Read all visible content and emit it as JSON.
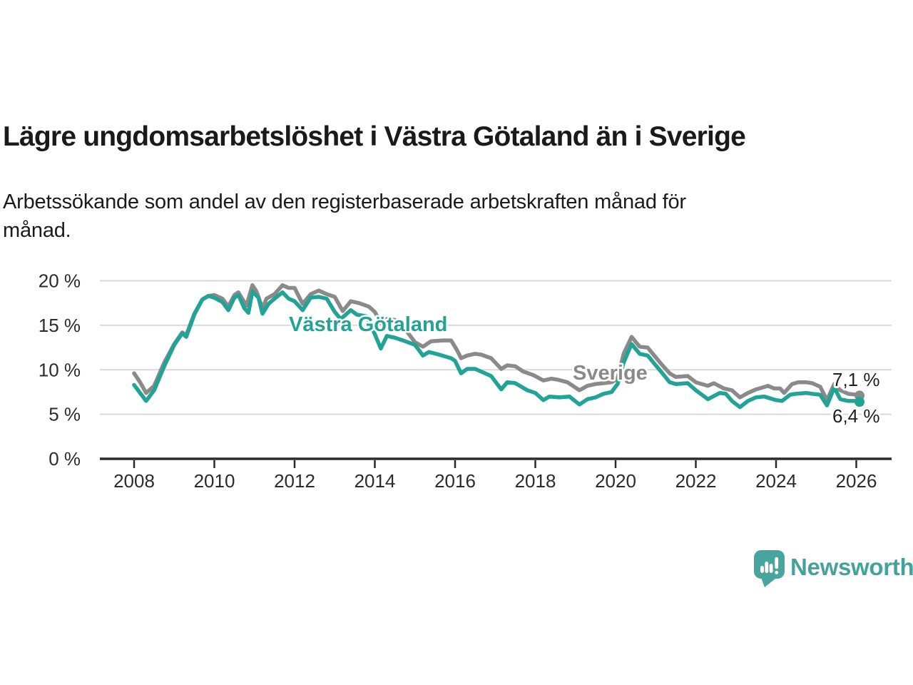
{
  "header": {
    "title": "Lägre ungdomsarbetslöshet i Västra Götaland än i Sverige",
    "subtitle_line1": "Arbetssökande som andel av den registerbaserade arbetskraften månad för",
    "subtitle_line2": "månad."
  },
  "branding": {
    "logo_text": "Newsworthy",
    "logo_color": "#43a39c",
    "logo_icon": "speech-bubble-bar-chart"
  },
  "chart_data": {
    "type": "line",
    "title": "Lägre ungdomsarbetslöshet i Västra Götaland än i Sverige",
    "subtitle": "Arbetssökande som andel av den registerbaserade arbetskraften månad för månad.",
    "grid": "horizontal-only",
    "x_axis": {
      "ticks": [
        2008,
        2010,
        2012,
        2014,
        2016,
        2018,
        2020,
        2022,
        2024,
        2026
      ],
      "range": [
        2007.9,
        2026.9
      ]
    },
    "y_axis": {
      "ticks": [
        {
          "value": 0,
          "label": "0 %"
        },
        {
          "value": 5,
          "label": "5 %"
        },
        {
          "value": 10,
          "label": "10 %"
        },
        {
          "value": 15,
          "label": "15 %"
        },
        {
          "value": 20,
          "label": "20 %"
        }
      ],
      "range": [
        0,
        20
      ]
    },
    "series": [
      {
        "name": "Sverige",
        "color": "#8a8a8a",
        "end_label": "7,1 %",
        "end_value": 7.1,
        "points": [
          [
            2008.0,
            9.6
          ],
          [
            2008.15,
            8.6
          ],
          [
            2008.3,
            7.4
          ],
          [
            2008.5,
            8.2
          ],
          [
            2008.75,
            10.8
          ],
          [
            2009.0,
            12.9
          ],
          [
            2009.2,
            14.2
          ],
          [
            2009.3,
            13.9
          ],
          [
            2009.5,
            16.3
          ],
          [
            2009.7,
            17.9
          ],
          [
            2009.85,
            18.3
          ],
          [
            2010.0,
            18.4
          ],
          [
            2010.2,
            18.0
          ],
          [
            2010.35,
            17.1
          ],
          [
            2010.5,
            18.4
          ],
          [
            2010.6,
            18.7
          ],
          [
            2010.8,
            17.2
          ],
          [
            2010.95,
            19.5
          ],
          [
            2011.05,
            18.8
          ],
          [
            2011.2,
            16.9
          ],
          [
            2011.3,
            18.0
          ],
          [
            2011.5,
            18.5
          ],
          [
            2011.7,
            19.5
          ],
          [
            2011.85,
            19.2
          ],
          [
            2012.0,
            19.2
          ],
          [
            2012.2,
            17.4
          ],
          [
            2012.4,
            18.5
          ],
          [
            2012.6,
            18.9
          ],
          [
            2012.8,
            18.5
          ],
          [
            2013.0,
            18.2
          ],
          [
            2013.2,
            16.6
          ],
          [
            2013.4,
            17.7
          ],
          [
            2013.6,
            17.5
          ],
          [
            2013.85,
            17.1
          ],
          [
            2014.0,
            16.5
          ],
          [
            2014.15,
            15.3
          ],
          [
            2014.3,
            15.7
          ],
          [
            2014.5,
            15.6
          ],
          [
            2014.75,
            14.6
          ],
          [
            2015.0,
            13.1
          ],
          [
            2015.2,
            12.6
          ],
          [
            2015.4,
            13.2
          ],
          [
            2015.7,
            13.3
          ],
          [
            2015.9,
            13.3
          ],
          [
            2016.05,
            12.2
          ],
          [
            2016.15,
            11.3
          ],
          [
            2016.3,
            11.6
          ],
          [
            2016.5,
            11.8
          ],
          [
            2016.65,
            11.7
          ],
          [
            2016.9,
            11.3
          ],
          [
            2017.15,
            10.1
          ],
          [
            2017.3,
            10.5
          ],
          [
            2017.5,
            10.4
          ],
          [
            2017.7,
            9.8
          ],
          [
            2017.95,
            9.4
          ],
          [
            2018.2,
            8.8
          ],
          [
            2018.4,
            9.0
          ],
          [
            2018.55,
            8.9
          ],
          [
            2018.8,
            8.6
          ],
          [
            2019.1,
            7.7
          ],
          [
            2019.3,
            8.2
          ],
          [
            2019.5,
            8.4
          ],
          [
            2019.7,
            8.5
          ],
          [
            2019.9,
            8.6
          ],
          [
            2020.05,
            9.0
          ],
          [
            2020.2,
            11.8
          ],
          [
            2020.4,
            13.7
          ],
          [
            2020.6,
            12.6
          ],
          [
            2020.8,
            12.5
          ],
          [
            2021.0,
            11.4
          ],
          [
            2021.15,
            10.6
          ],
          [
            2021.35,
            9.6
          ],
          [
            2021.5,
            9.2
          ],
          [
            2021.8,
            9.3
          ],
          [
            2022.0,
            8.6
          ],
          [
            2022.3,
            8.2
          ],
          [
            2022.45,
            8.5
          ],
          [
            2022.7,
            7.9
          ],
          [
            2022.9,
            7.7
          ],
          [
            2023.1,
            6.9
          ],
          [
            2023.3,
            7.4
          ],
          [
            2023.5,
            7.8
          ],
          [
            2023.8,
            8.2
          ],
          [
            2023.95,
            7.9
          ],
          [
            2024.1,
            7.9
          ],
          [
            2024.2,
            7.4
          ],
          [
            2024.4,
            8.4
          ],
          [
            2024.55,
            8.6
          ],
          [
            2024.75,
            8.6
          ],
          [
            2024.9,
            8.5
          ],
          [
            2025.1,
            8.1
          ],
          [
            2025.27,
            6.6
          ],
          [
            2025.45,
            8.4
          ],
          [
            2025.6,
            7.7
          ],
          [
            2025.8,
            7.3
          ],
          [
            2026.0,
            7.2
          ],
          [
            2026.08,
            7.1
          ]
        ]
      },
      {
        "name": "Västra Götaland",
        "color": "#21a396",
        "end_label": "6,4 %",
        "end_value": 6.4,
        "points": [
          [
            2008.0,
            8.3
          ],
          [
            2008.15,
            7.4
          ],
          [
            2008.3,
            6.5
          ],
          [
            2008.5,
            7.7
          ],
          [
            2008.75,
            10.4
          ],
          [
            2009.0,
            12.8
          ],
          [
            2009.2,
            14.1
          ],
          [
            2009.3,
            13.7
          ],
          [
            2009.5,
            16.2
          ],
          [
            2009.7,
            17.9
          ],
          [
            2009.85,
            18.3
          ],
          [
            2010.0,
            18.1
          ],
          [
            2010.2,
            17.6
          ],
          [
            2010.35,
            16.7
          ],
          [
            2010.5,
            18.1
          ],
          [
            2010.6,
            18.4
          ],
          [
            2010.75,
            16.9
          ],
          [
            2010.85,
            16.4
          ],
          [
            2010.95,
            18.8
          ],
          [
            2011.1,
            18.1
          ],
          [
            2011.2,
            16.3
          ],
          [
            2011.35,
            17.4
          ],
          [
            2011.5,
            18.0
          ],
          [
            2011.7,
            18.7
          ],
          [
            2011.85,
            18.0
          ],
          [
            2012.0,
            17.7
          ],
          [
            2012.2,
            16.7
          ],
          [
            2012.4,
            18.1
          ],
          [
            2012.6,
            18.2
          ],
          [
            2012.8,
            18.0
          ],
          [
            2013.0,
            16.5
          ],
          [
            2013.15,
            15.7
          ],
          [
            2013.4,
            16.7
          ],
          [
            2013.55,
            16.2
          ],
          [
            2013.8,
            16.0
          ],
          [
            2014.0,
            14.0
          ],
          [
            2014.15,
            12.4
          ],
          [
            2014.3,
            13.8
          ],
          [
            2014.5,
            13.6
          ],
          [
            2014.7,
            13.3
          ],
          [
            2015.0,
            12.8
          ],
          [
            2015.2,
            11.6
          ],
          [
            2015.35,
            12.0
          ],
          [
            2015.6,
            11.7
          ],
          [
            2015.9,
            11.3
          ],
          [
            2016.0,
            11.0
          ],
          [
            2016.15,
            9.6
          ],
          [
            2016.3,
            10.1
          ],
          [
            2016.5,
            10.1
          ],
          [
            2016.7,
            9.7
          ],
          [
            2016.9,
            9.3
          ],
          [
            2017.15,
            7.8
          ],
          [
            2017.3,
            8.6
          ],
          [
            2017.5,
            8.5
          ],
          [
            2017.8,
            7.7
          ],
          [
            2018.0,
            7.4
          ],
          [
            2018.2,
            6.6
          ],
          [
            2018.35,
            7.0
          ],
          [
            2018.6,
            6.9
          ],
          [
            2018.85,
            7.0
          ],
          [
            2019.1,
            6.1
          ],
          [
            2019.3,
            6.7
          ],
          [
            2019.5,
            6.9
          ],
          [
            2019.7,
            7.3
          ],
          [
            2019.9,
            7.5
          ],
          [
            2020.05,
            8.4
          ],
          [
            2020.2,
            10.8
          ],
          [
            2020.4,
            12.9
          ],
          [
            2020.6,
            11.8
          ],
          [
            2020.8,
            11.6
          ],
          [
            2021.0,
            10.5
          ],
          [
            2021.15,
            9.7
          ],
          [
            2021.35,
            8.6
          ],
          [
            2021.5,
            8.4
          ],
          [
            2021.8,
            8.5
          ],
          [
            2022.0,
            7.7
          ],
          [
            2022.3,
            6.7
          ],
          [
            2022.6,
            7.4
          ],
          [
            2022.75,
            7.3
          ],
          [
            2022.9,
            6.5
          ],
          [
            2023.1,
            5.8
          ],
          [
            2023.3,
            6.5
          ],
          [
            2023.5,
            6.9
          ],
          [
            2023.7,
            7.0
          ],
          [
            2023.85,
            6.8
          ],
          [
            2024.0,
            6.6
          ],
          [
            2024.15,
            6.5
          ],
          [
            2024.35,
            7.2
          ],
          [
            2024.5,
            7.3
          ],
          [
            2024.75,
            7.4
          ],
          [
            2024.9,
            7.3
          ],
          [
            2025.1,
            7.2
          ],
          [
            2025.27,
            6.0
          ],
          [
            2025.45,
            8.0
          ],
          [
            2025.6,
            6.7
          ],
          [
            2025.8,
            6.5
          ],
          [
            2026.0,
            6.5
          ],
          [
            2026.08,
            6.4
          ]
        ]
      }
    ],
    "legend_position": "inline-labels"
  }
}
